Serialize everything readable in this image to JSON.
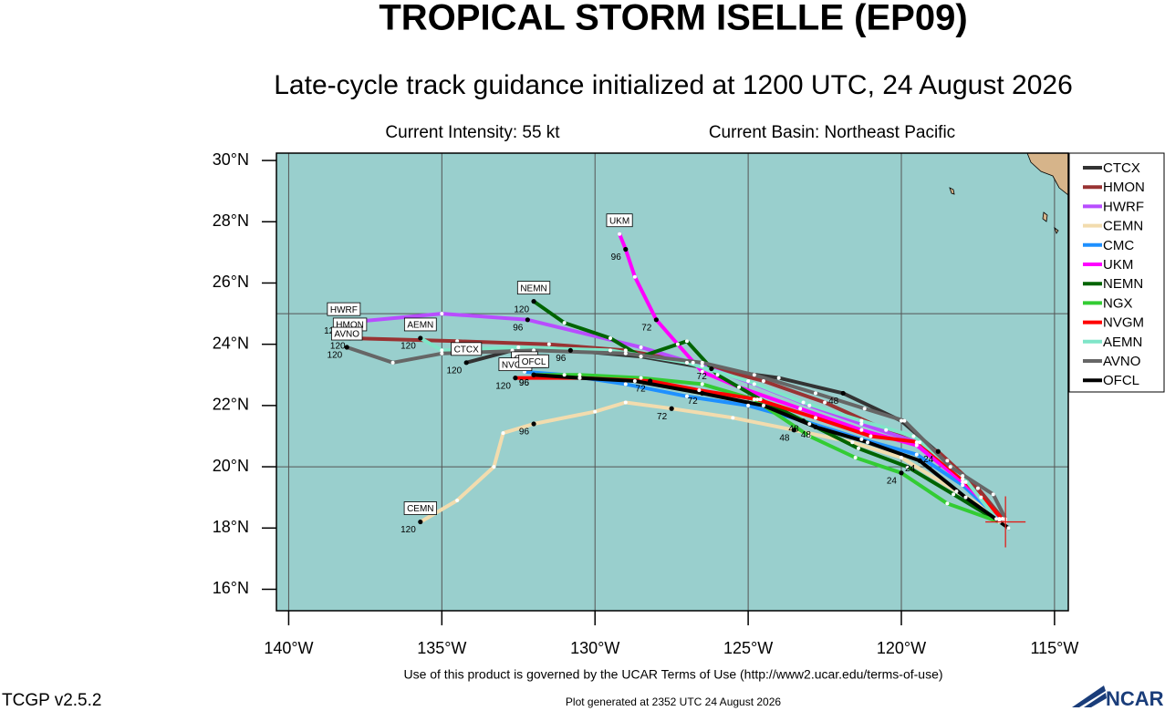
{
  "header": {
    "title": "TROPICAL STORM ISELLE (EP09)",
    "subtitle": "Late-cycle track guidance initialized at 1200 UTC, 24 August 2026",
    "intensity": "Current Intensity: 55 kt",
    "basin": "Current Basin: Northeast Pacific"
  },
  "chart_data": {
    "type": "track-map",
    "xlim": [
      -140.4,
      -114.55
    ],
    "ylim": [
      15.3,
      30.24
    ],
    "xticks": [
      {
        "value": -140,
        "label": "140°W"
      },
      {
        "value": -135,
        "label": "135°W"
      },
      {
        "value": -130,
        "label": "130°W"
      },
      {
        "value": -125,
        "label": "125°W"
      },
      {
        "value": -120,
        "label": "120°W"
      },
      {
        "value": -115,
        "label": "115°W"
      }
    ],
    "yticks": [
      {
        "value": 30,
        "label": "30°N"
      },
      {
        "value": 28,
        "label": "28°N"
      },
      {
        "value": 26,
        "label": "26°N"
      },
      {
        "value": 24,
        "label": "24°N"
      },
      {
        "value": 22,
        "label": "22°N"
      },
      {
        "value": 20,
        "label": "20°N"
      },
      {
        "value": 18,
        "label": "18°N"
      },
      {
        "value": 16,
        "label": "16°N"
      }
    ],
    "lat_gridlines": [
      20,
      25
    ],
    "legend": "right",
    "current_position": {
      "lon": -116.6,
      "lat": 18.2,
      "color": "#e0201b"
    },
    "tracks": [
      {
        "name": "CTCX",
        "color": "#333333",
        "lon": [
          -116.6,
          -117.4,
          -118.5,
          -120.0,
          -121.9,
          -124.0,
          -126.2,
          -128.5,
          -130.8,
          -132.7,
          -134.2
        ],
        "lat": [
          18.2,
          19.0,
          20.2,
          21.5,
          22.4,
          22.9,
          23.2,
          23.6,
          23.8,
          23.8,
          23.4
        ],
        "hours": [
          null,
          null,
          null,
          null,
          48,
          null,
          72,
          null,
          96,
          null,
          120
        ]
      },
      {
        "name": "HMON",
        "color": "#993333",
        "lon": [
          -116.6,
          -117.5,
          -118.8,
          -120.5,
          -122.5,
          -124.5,
          -126.8,
          -129.0,
          -131.5,
          -134.5,
          -138.0
        ],
        "lat": [
          18.2,
          19.3,
          20.5,
          21.2,
          22.1,
          22.8,
          23.4,
          23.8,
          24.0,
          24.1,
          24.2
        ],
        "hours": [
          null,
          null,
          24,
          null,
          null,
          null,
          null,
          null,
          null,
          null,
          120
        ]
      },
      {
        "name": "HWRF",
        "color": "#b84dff",
        "lon": [
          -116.8,
          -117.9,
          -119.5,
          -121.3,
          -123.0,
          -124.8,
          -126.5,
          -128.5,
          -132.2,
          -135.0,
          -138.2
        ],
        "lat": [
          18.3,
          19.5,
          20.8,
          21.4,
          22.0,
          22.7,
          23.3,
          23.9,
          24.8,
          25.0,
          24.7
        ],
        "hours": [
          null,
          null,
          null,
          null,
          null,
          null,
          null,
          null,
          96,
          null,
          120
        ]
      },
      {
        "name": "CEMN",
        "color": "#f2dcae",
        "lon": [
          -116.7,
          -118.2,
          -120.0,
          -121.6,
          -123.5,
          -125.5,
          -127.5,
          -129.0,
          -130.0,
          -132.0,
          -133.0,
          -133.3,
          -134.5,
          -135.7
        ],
        "lat": [
          18.3,
          19.2,
          20.3,
          20.8,
          21.2,
          21.6,
          21.9,
          22.1,
          21.8,
          21.4,
          21.1,
          20.0,
          18.9,
          18.2
        ],
        "hours": [
          null,
          null,
          null,
          null,
          48,
          null,
          72,
          null,
          null,
          96,
          null,
          null,
          null,
          120
        ]
      },
      {
        "name": "CMC",
        "color": "#1e90ff",
        "lon": [
          -116.8,
          -118.0,
          -119.5,
          -121.3,
          -123.2,
          -125.0,
          -127.0,
          -129.0,
          -131.0,
          -132.3
        ],
        "lat": [
          18.3,
          19.4,
          20.4,
          20.9,
          21.5,
          22.0,
          22.3,
          22.7,
          23.0,
          23.1
        ],
        "hours": [
          null,
          null,
          null,
          null,
          48,
          null,
          null,
          null,
          null,
          null
        ]
      },
      {
        "name": "UKM",
        "color": "#ff00ff",
        "lon": [
          -116.7,
          -118.0,
          -119.5,
          -121.3,
          -123.3,
          -125.3,
          -126.5,
          -127.3,
          -128.0,
          -128.7,
          -129.0,
          -129.2
        ],
        "lat": [
          18.3,
          19.5,
          20.7,
          21.2,
          21.9,
          22.6,
          23.1,
          24.0,
          24.8,
          26.2,
          27.1,
          27.6
        ],
        "hours": [
          null,
          null,
          null,
          null,
          null,
          null,
          null,
          null,
          72,
          null,
          96,
          null
        ]
      },
      {
        "name": "NEMN",
        "color": "#006400",
        "lon": [
          -116.8,
          -118.3,
          -119.8,
          -121.4,
          -123.0,
          -124.6,
          -126.0,
          -127.0,
          -128.5,
          -129.5,
          -131.0,
          -132.0
        ],
        "lat": [
          18.2,
          19.1,
          20.0,
          20.6,
          21.4,
          22.2,
          23.0,
          24.1,
          23.6,
          24.2,
          24.7,
          25.4
        ],
        "hours": [
          null,
          null,
          null,
          null,
          null,
          null,
          null,
          null,
          null,
          null,
          null,
          120
        ]
      },
      {
        "name": "NGX",
        "color": "#33cc33",
        "lon": [
          -116.8,
          -118.5,
          -120.0,
          -121.5,
          -123.0,
          -124.8,
          -126.5,
          -128.5,
          -130.5,
          -132.0
        ],
        "lat": [
          18.2,
          18.8,
          19.8,
          20.3,
          21.0,
          22.2,
          22.7,
          22.9,
          23.0,
          23.0
        ],
        "hours": [
          null,
          null,
          24,
          null,
          null,
          null,
          null,
          null,
          null,
          96
        ]
      },
      {
        "name": "NVGM",
        "color": "#ff0000",
        "lon": [
          -116.7,
          -118.0,
          -119.4,
          -121.0,
          -122.8,
          -124.7,
          -126.6,
          -128.2,
          -130.5,
          -132.6
        ],
        "lat": [
          18.3,
          19.6,
          20.8,
          21.0,
          21.6,
          22.2,
          22.5,
          22.8,
          22.9,
          22.9
        ],
        "hours": [
          null,
          null,
          null,
          null,
          null,
          null,
          null,
          72,
          null,
          120
        ]
      },
      {
        "name": "AEMN",
        "color": "#7fe5c8",
        "lon": [
          -116.9,
          -118.0,
          -119.6,
          -121.3,
          -123.2,
          -125.0,
          -127.0,
          -129.5,
          -132.5,
          -135.0,
          -135.7
        ],
        "lat": [
          18.3,
          19.7,
          21.0,
          21.5,
          22.1,
          22.8,
          23.4,
          23.8,
          23.9,
          23.8,
          24.2
        ],
        "hours": [
          null,
          null,
          null,
          null,
          null,
          null,
          null,
          null,
          null,
          null,
          120
        ]
      },
      {
        "name": "AVNO",
        "color": "#666666",
        "lon": [
          -116.6,
          -117.0,
          -118.4,
          -119.9,
          -121.2,
          -122.8,
          -124.8,
          -126.5,
          -129.0,
          -132.0,
          -135.0,
          -136.6,
          -138.1
        ],
        "lat": [
          18.3,
          19.1,
          20.0,
          21.5,
          21.9,
          22.4,
          23.0,
          23.4,
          23.7,
          23.8,
          23.7,
          23.4,
          23.9
        ],
        "hours": [
          null,
          null,
          null,
          null,
          null,
          null,
          null,
          null,
          null,
          null,
          null,
          null,
          120
        ]
      },
      {
        "name": "OFCL",
        "color": "#000000",
        "lon": [
          -116.5,
          -117.9,
          -119.4,
          -121.1,
          -122.8,
          -124.5,
          -126.5,
          -128.7,
          -130.5,
          -132.0
        ],
        "lat": [
          18.0,
          19.0,
          20.2,
          20.8,
          21.3,
          22.0,
          22.4,
          22.8,
          22.9,
          23.0
        ],
        "hours": [
          null,
          null,
          24,
          null,
          48,
          null,
          72,
          null,
          null,
          96
        ]
      }
    ]
  },
  "footer": {
    "terms": "Use of this product is governed by the UCAR Terms of Use (http://www2.ucar.edu/terms-of-use)",
    "version": "TCGP v2.5.2",
    "generated": "Plot generated at 2352 UTC  24 August 2026",
    "logo": "NCAR"
  }
}
